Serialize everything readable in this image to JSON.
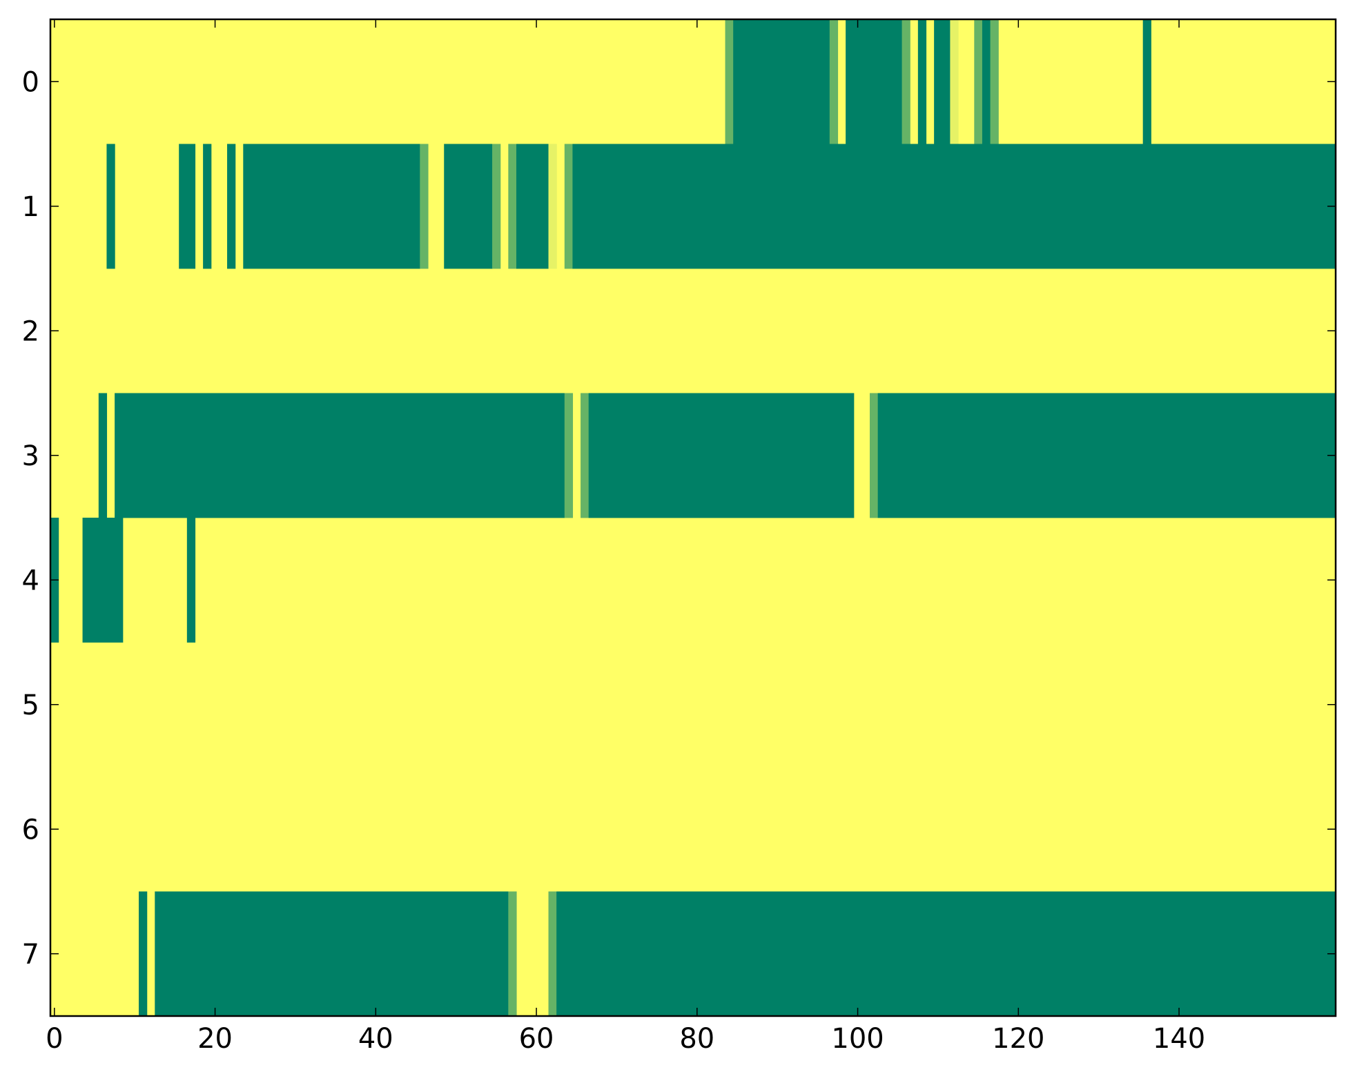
{
  "chart_data": {
    "type": "heatmap",
    "title": "",
    "xlabel": "",
    "ylabel": "",
    "xlim": [
      -0.5,
      159.5
    ],
    "ylim": [
      7.5,
      -0.5
    ],
    "n_cols": 160,
    "n_rows": 8,
    "x_ticks": [
      "0",
      "20",
      "40",
      "60",
      "80",
      "100",
      "120",
      "140"
    ],
    "x_tick_values": [
      0,
      20,
      40,
      60,
      80,
      100,
      120,
      140
    ],
    "y_ticks": [
      "0",
      "1",
      "2",
      "3",
      "4",
      "5",
      "6",
      "7"
    ],
    "y_tick_values": [
      0,
      1,
      2,
      3,
      4,
      5,
      6,
      7
    ],
    "value_range": [
      0,
      1
    ],
    "colormap": [
      "#ffff66",
      "#008066"
    ],
    "colorbar": false,
    "background_value": 0,
    "rows": [
      {
        "row": 0,
        "segments": [
          {
            "start": 84,
            "end": 84,
            "value": 0.6
          },
          {
            "start": 85,
            "end": 96,
            "value": 1.0
          },
          {
            "start": 97,
            "end": 97,
            "value": 0.6
          },
          {
            "start": 99,
            "end": 105,
            "value": 1.0
          },
          {
            "start": 106,
            "end": 106,
            "value": 0.6
          },
          {
            "start": 108,
            "end": 108,
            "value": 1.0
          },
          {
            "start": 110,
            "end": 111,
            "value": 1.0
          },
          {
            "start": 112,
            "end": 112,
            "value": 0.1
          },
          {
            "start": 115,
            "end": 115,
            "value": 0.6
          },
          {
            "start": 116,
            "end": 116,
            "value": 1.0
          },
          {
            "start": 117,
            "end": 117,
            "value": 0.6
          },
          {
            "start": 136,
            "end": 136,
            "value": 1.0
          }
        ]
      },
      {
        "row": 1,
        "segments": [
          {
            "start": 7,
            "end": 7,
            "value": 1.0
          },
          {
            "start": 16,
            "end": 17,
            "value": 1.0
          },
          {
            "start": 19,
            "end": 19,
            "value": 1.0
          },
          {
            "start": 22,
            "end": 22,
            "value": 1.0
          },
          {
            "start": 24,
            "end": 45,
            "value": 1.0
          },
          {
            "start": 46,
            "end": 46,
            "value": 0.6
          },
          {
            "start": 49,
            "end": 54,
            "value": 1.0
          },
          {
            "start": 55,
            "end": 55,
            "value": 0.6
          },
          {
            "start": 57,
            "end": 57,
            "value": 0.6
          },
          {
            "start": 58,
            "end": 61,
            "value": 1.0
          },
          {
            "start": 62,
            "end": 62,
            "value": 0.1
          },
          {
            "start": 64,
            "end": 64,
            "value": 0.6
          },
          {
            "start": 65,
            "end": 159,
            "value": 1.0
          }
        ]
      },
      {
        "row": 2,
        "segments": []
      },
      {
        "row": 3,
        "segments": [
          {
            "start": 6,
            "end": 6,
            "value": 1.0
          },
          {
            "start": 8,
            "end": 63,
            "value": 1.0
          },
          {
            "start": 64,
            "end": 64,
            "value": 0.6
          },
          {
            "start": 66,
            "end": 66,
            "value": 0.6
          },
          {
            "start": 67,
            "end": 99,
            "value": 1.0
          },
          {
            "start": 102,
            "end": 102,
            "value": 0.6
          },
          {
            "start": 103,
            "end": 159,
            "value": 1.0
          }
        ]
      },
      {
        "row": 4,
        "segments": [
          {
            "start": 0,
            "end": 0,
            "value": 1.0
          },
          {
            "start": 4,
            "end": 8,
            "value": 1.0
          },
          {
            "start": 17,
            "end": 17,
            "value": 1.0
          }
        ]
      },
      {
        "row": 5,
        "segments": []
      },
      {
        "row": 6,
        "segments": []
      },
      {
        "row": 7,
        "segments": [
          {
            "start": 11,
            "end": 11,
            "value": 1.0
          },
          {
            "start": 13,
            "end": 56,
            "value": 1.0
          },
          {
            "start": 57,
            "end": 57,
            "value": 0.6
          },
          {
            "start": 62,
            "end": 62,
            "value": 0.6
          },
          {
            "start": 63,
            "end": 159,
            "value": 1.0
          }
        ]
      }
    ]
  }
}
